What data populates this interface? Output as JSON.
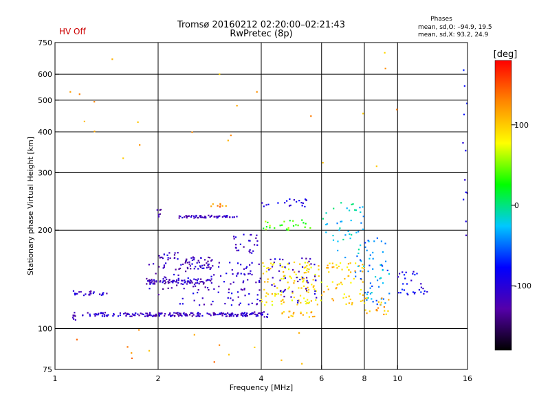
{
  "status_label": "HV Off",
  "chart_data": {
    "type": "scatter",
    "title": "Tromsø 20160212 02:20:00–02:21:43",
    "subtitle": "RwPretec (8p)",
    "xlabel": "Frequency [MHz]",
    "ylabel": "Stationary phase Virtual Height [km]",
    "x_scale": "log",
    "y_scale": "log",
    "xlim": [
      1,
      16
    ],
    "ylim": [
      75,
      750
    ],
    "x_ticks": [
      1,
      2,
      4,
      6,
      8,
      10,
      16
    ],
    "y_ticks": [
      75,
      100,
      200,
      300,
      400,
      500,
      600,
      750
    ],
    "grid": true,
    "phases_box": {
      "title": "Phases",
      "line_o": "mean, sd,O: –94.9, 19.5",
      "line_x": "mean, sd,X:  93.2, 24.9"
    },
    "colorbar": {
      "label": "[deg]",
      "range": [
        -180,
        180
      ],
      "ticks": [
        100,
        0,
        -100
      ],
      "colors": [
        "#000000",
        "#5500aa",
        "#0000ff",
        "#00c8ff",
        "#00ff00",
        "#ffff00",
        "#ff8800",
        "#ff0000"
      ]
    },
    "clusters": [
      {
        "x": [
          1.1,
          1.3
        ],
        "y": [
          126,
          131
        ],
        "n": 18,
        "phase": -110
      },
      {
        "x": [
          1.35,
          1.42
        ],
        "y": [
          126,
          131
        ],
        "n": 6,
        "phase": -105
      },
      {
        "x": [
          1.1,
          1.15
        ],
        "y": [
          105,
          112
        ],
        "n": 8,
        "phase": -115
      },
      {
        "x": [
          1.2,
          1.85
        ],
        "y": [
          109,
          112
        ],
        "n": 55,
        "phase": -110
      },
      {
        "x": [
          1.85,
          3.8
        ],
        "y": [
          109,
          112
        ],
        "n": 150,
        "phase": -115
      },
      {
        "x": [
          3.8,
          4.2
        ],
        "y": [
          108,
          113
        ],
        "n": 18,
        "phase": -100
      },
      {
        "x": [
          1.85,
          2.9
        ],
        "y": [
          137,
          142
        ],
        "n": 75,
        "phase": -115
      },
      {
        "x": [
          1.85,
          2.3
        ],
        "y": [
          125,
          160
        ],
        "n": 25,
        "phase": -112
      },
      {
        "x": [
          2.0,
          2.3
        ],
        "y": [
          160,
          172
        ],
        "n": 18,
        "phase": -115
      },
      {
        "x": [
          2.4,
          2.9
        ],
        "y": [
          152,
          166
        ],
        "n": 45,
        "phase": -115
      },
      {
        "x": [
          2.2,
          3.2
        ],
        "y": [
          118,
          160
        ],
        "n": 45,
        "phase": -110
      },
      {
        "x": [
          2.3,
          3.4
        ],
        "y": [
          218,
          222
        ],
        "n": 55,
        "phase": -115
      },
      {
        "x": [
          1.95,
          2.05
        ],
        "y": [
          220,
          232
        ],
        "n": 6,
        "phase": -115
      },
      {
        "x": [
          3.3,
          3.9
        ],
        "y": [
          170,
          195
        ],
        "n": 25,
        "phase": -110
      },
      {
        "x": [
          3.2,
          4.0
        ],
        "y": [
          118,
          160
        ],
        "n": 55,
        "phase": -105
      },
      {
        "x": [
          4.0,
          5.6
        ],
        "y": [
          235,
          250
        ],
        "n": 20,
        "phase": -100
      },
      {
        "x": [
          4.0,
          5.6
        ],
        "y": [
          200,
          215
        ],
        "n": 25,
        "phase": 40
      },
      {
        "x": [
          4.0,
          6.0
        ],
        "y": [
          118,
          160
        ],
        "n": 120,
        "phase": 90
      },
      {
        "x": [
          4.2,
          5.8
        ],
        "y": [
          120,
          165
        ],
        "n": 50,
        "phase": -110
      },
      {
        "x": [
          4.5,
          5.8
        ],
        "y": [
          108,
          113
        ],
        "n": 20,
        "phase": 110
      },
      {
        "x": [
          6.0,
          8.0
        ],
        "y": [
          160,
          245
        ],
        "n": 40,
        "phase": -20
      },
      {
        "x": [
          6.0,
          8.0
        ],
        "y": [
          118,
          160
        ],
        "n": 60,
        "phase": 100
      },
      {
        "x": [
          7.5,
          9.5
        ],
        "y": [
          118,
          190
        ],
        "n": 60,
        "phase": -40
      },
      {
        "x": [
          8.0,
          9.5
        ],
        "y": [
          110,
          125
        ],
        "n": 20,
        "phase": 110
      },
      {
        "x": [
          10.0,
          12.2
        ],
        "y": [
          125,
          150
        ],
        "n": 30,
        "phase": -90
      },
      {
        "x": [
          2.8,
          3.2
        ],
        "y": [
          235,
          242
        ],
        "n": 8,
        "phase": 130
      },
      {
        "x": [
          1.05,
          15.0
        ],
        "y": [
          78,
          100
        ],
        "n": 14,
        "phase": 120
      },
      {
        "x": [
          15.5,
          16.0
        ],
        "y": [
          140,
          680
        ],
        "n": 12,
        "phase": -90
      },
      {
        "x": [
          1.1,
          12.0
        ],
        "y": [
          300,
          700
        ],
        "n": 22,
        "phase": 110
      }
    ]
  }
}
